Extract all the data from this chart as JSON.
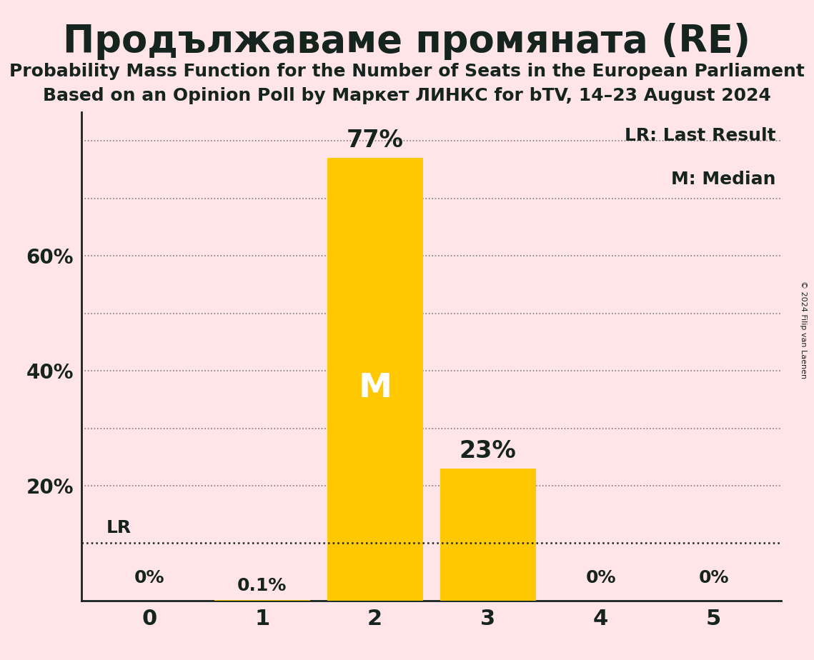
{
  "title": "Продължаваме промяната (RE)",
  "subtitle1": "Probability Mass Function for the Number of Seats in the European Parliament",
  "subtitle2": "Based on an Opinion Poll by Маркет ЛИНКС for bTV, 14–23 August 2024",
  "copyright": "© 2024 Filip van Laenen",
  "legend1": "LR: Last Result",
  "legend2": "M: Median",
  "categories": [
    0,
    1,
    2,
    3,
    4,
    5
  ],
  "values": [
    0.0,
    0.1,
    77.0,
    23.0,
    0.0,
    0.0
  ],
  "bar_color": "#FFC800",
  "background_color": "#FFE4E8",
  "text_color": "#162420",
  "bar_label_color_inside": "#ffffff",
  "bar_label_color_outside": "#162420",
  "median_seat": 2,
  "last_result_value": 10.0,
  "ylim_max": 85,
  "ytick_positions": [
    20,
    40,
    60
  ],
  "ytick_labels": [
    "20%",
    "40%",
    "60%"
  ],
  "grid_y_values": [
    10,
    20,
    30,
    40,
    50,
    60,
    70,
    80
  ],
  "title_fontsize": 38,
  "subtitle_fontsize": 18,
  "label_fontsize": 18,
  "tick_fontsize": 20,
  "bar_label_fontsize_large": 24,
  "bar_label_fontsize_small": 18,
  "M_fontsize": 34,
  "legend_fontsize": 18,
  "lr_fontsize": 18,
  "copyright_fontsize": 8
}
